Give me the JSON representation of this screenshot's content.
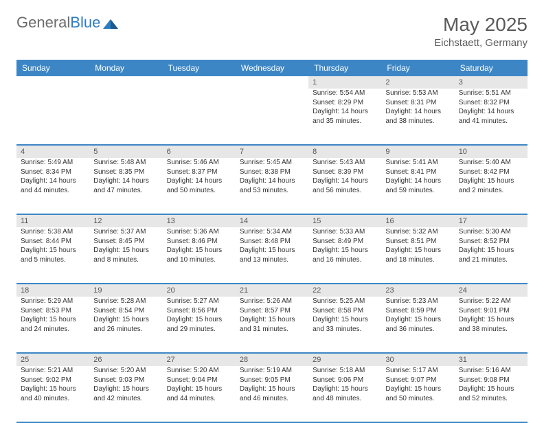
{
  "logo": {
    "part1": "General",
    "part2": "Blue"
  },
  "header": {
    "month_title": "May 2025",
    "location": "Eichstaett, Germany"
  },
  "columns": [
    "Sunday",
    "Monday",
    "Tuesday",
    "Wednesday",
    "Thursday",
    "Friday",
    "Saturday"
  ],
  "colors": {
    "header_bg": "#3c86c6",
    "daynum_bg": "#e7e7e7",
    "border": "#3c86c6",
    "logo_gray": "#6b6b6b",
    "logo_blue": "#2d7cc2"
  },
  "weeks": [
    {
      "nums": [
        "",
        "",
        "",
        "",
        "1",
        "2",
        "3"
      ],
      "cells": [
        null,
        null,
        null,
        null,
        {
          "sunrise": "Sunrise: 5:54 AM",
          "sunset": "Sunset: 8:29 PM",
          "day1": "Daylight: 14 hours",
          "day2": "and 35 minutes."
        },
        {
          "sunrise": "Sunrise: 5:53 AM",
          "sunset": "Sunset: 8:31 PM",
          "day1": "Daylight: 14 hours",
          "day2": "and 38 minutes."
        },
        {
          "sunrise": "Sunrise: 5:51 AM",
          "sunset": "Sunset: 8:32 PM",
          "day1": "Daylight: 14 hours",
          "day2": "and 41 minutes."
        }
      ]
    },
    {
      "nums": [
        "4",
        "5",
        "6",
        "7",
        "8",
        "9",
        "10"
      ],
      "cells": [
        {
          "sunrise": "Sunrise: 5:49 AM",
          "sunset": "Sunset: 8:34 PM",
          "day1": "Daylight: 14 hours",
          "day2": "and 44 minutes."
        },
        {
          "sunrise": "Sunrise: 5:48 AM",
          "sunset": "Sunset: 8:35 PM",
          "day1": "Daylight: 14 hours",
          "day2": "and 47 minutes."
        },
        {
          "sunrise": "Sunrise: 5:46 AM",
          "sunset": "Sunset: 8:37 PM",
          "day1": "Daylight: 14 hours",
          "day2": "and 50 minutes."
        },
        {
          "sunrise": "Sunrise: 5:45 AM",
          "sunset": "Sunset: 8:38 PM",
          "day1": "Daylight: 14 hours",
          "day2": "and 53 minutes."
        },
        {
          "sunrise": "Sunrise: 5:43 AM",
          "sunset": "Sunset: 8:39 PM",
          "day1": "Daylight: 14 hours",
          "day2": "and 56 minutes."
        },
        {
          "sunrise": "Sunrise: 5:41 AM",
          "sunset": "Sunset: 8:41 PM",
          "day1": "Daylight: 14 hours",
          "day2": "and 59 minutes."
        },
        {
          "sunrise": "Sunrise: 5:40 AM",
          "sunset": "Sunset: 8:42 PM",
          "day1": "Daylight: 15 hours",
          "day2": "and 2 minutes."
        }
      ]
    },
    {
      "nums": [
        "11",
        "12",
        "13",
        "14",
        "15",
        "16",
        "17"
      ],
      "cells": [
        {
          "sunrise": "Sunrise: 5:38 AM",
          "sunset": "Sunset: 8:44 PM",
          "day1": "Daylight: 15 hours",
          "day2": "and 5 minutes."
        },
        {
          "sunrise": "Sunrise: 5:37 AM",
          "sunset": "Sunset: 8:45 PM",
          "day1": "Daylight: 15 hours",
          "day2": "and 8 minutes."
        },
        {
          "sunrise": "Sunrise: 5:36 AM",
          "sunset": "Sunset: 8:46 PM",
          "day1": "Daylight: 15 hours",
          "day2": "and 10 minutes."
        },
        {
          "sunrise": "Sunrise: 5:34 AM",
          "sunset": "Sunset: 8:48 PM",
          "day1": "Daylight: 15 hours",
          "day2": "and 13 minutes."
        },
        {
          "sunrise": "Sunrise: 5:33 AM",
          "sunset": "Sunset: 8:49 PM",
          "day1": "Daylight: 15 hours",
          "day2": "and 16 minutes."
        },
        {
          "sunrise": "Sunrise: 5:32 AM",
          "sunset": "Sunset: 8:51 PM",
          "day1": "Daylight: 15 hours",
          "day2": "and 18 minutes."
        },
        {
          "sunrise": "Sunrise: 5:30 AM",
          "sunset": "Sunset: 8:52 PM",
          "day1": "Daylight: 15 hours",
          "day2": "and 21 minutes."
        }
      ]
    },
    {
      "nums": [
        "18",
        "19",
        "20",
        "21",
        "22",
        "23",
        "24"
      ],
      "cells": [
        {
          "sunrise": "Sunrise: 5:29 AM",
          "sunset": "Sunset: 8:53 PM",
          "day1": "Daylight: 15 hours",
          "day2": "and 24 minutes."
        },
        {
          "sunrise": "Sunrise: 5:28 AM",
          "sunset": "Sunset: 8:54 PM",
          "day1": "Daylight: 15 hours",
          "day2": "and 26 minutes."
        },
        {
          "sunrise": "Sunrise: 5:27 AM",
          "sunset": "Sunset: 8:56 PM",
          "day1": "Daylight: 15 hours",
          "day2": "and 29 minutes."
        },
        {
          "sunrise": "Sunrise: 5:26 AM",
          "sunset": "Sunset: 8:57 PM",
          "day1": "Daylight: 15 hours",
          "day2": "and 31 minutes."
        },
        {
          "sunrise": "Sunrise: 5:25 AM",
          "sunset": "Sunset: 8:58 PM",
          "day1": "Daylight: 15 hours",
          "day2": "and 33 minutes."
        },
        {
          "sunrise": "Sunrise: 5:23 AM",
          "sunset": "Sunset: 8:59 PM",
          "day1": "Daylight: 15 hours",
          "day2": "and 36 minutes."
        },
        {
          "sunrise": "Sunrise: 5:22 AM",
          "sunset": "Sunset: 9:01 PM",
          "day1": "Daylight: 15 hours",
          "day2": "and 38 minutes."
        }
      ]
    },
    {
      "nums": [
        "25",
        "26",
        "27",
        "28",
        "29",
        "30",
        "31"
      ],
      "cells": [
        {
          "sunrise": "Sunrise: 5:21 AM",
          "sunset": "Sunset: 9:02 PM",
          "day1": "Daylight: 15 hours",
          "day2": "and 40 minutes."
        },
        {
          "sunrise": "Sunrise: 5:20 AM",
          "sunset": "Sunset: 9:03 PM",
          "day1": "Daylight: 15 hours",
          "day2": "and 42 minutes."
        },
        {
          "sunrise": "Sunrise: 5:20 AM",
          "sunset": "Sunset: 9:04 PM",
          "day1": "Daylight: 15 hours",
          "day2": "and 44 minutes."
        },
        {
          "sunrise": "Sunrise: 5:19 AM",
          "sunset": "Sunset: 9:05 PM",
          "day1": "Daylight: 15 hours",
          "day2": "and 46 minutes."
        },
        {
          "sunrise": "Sunrise: 5:18 AM",
          "sunset": "Sunset: 9:06 PM",
          "day1": "Daylight: 15 hours",
          "day2": "and 48 minutes."
        },
        {
          "sunrise": "Sunrise: 5:17 AM",
          "sunset": "Sunset: 9:07 PM",
          "day1": "Daylight: 15 hours",
          "day2": "and 50 minutes."
        },
        {
          "sunrise": "Sunrise: 5:16 AM",
          "sunset": "Sunset: 9:08 PM",
          "day1": "Daylight: 15 hours",
          "day2": "and 52 minutes."
        }
      ]
    }
  ]
}
